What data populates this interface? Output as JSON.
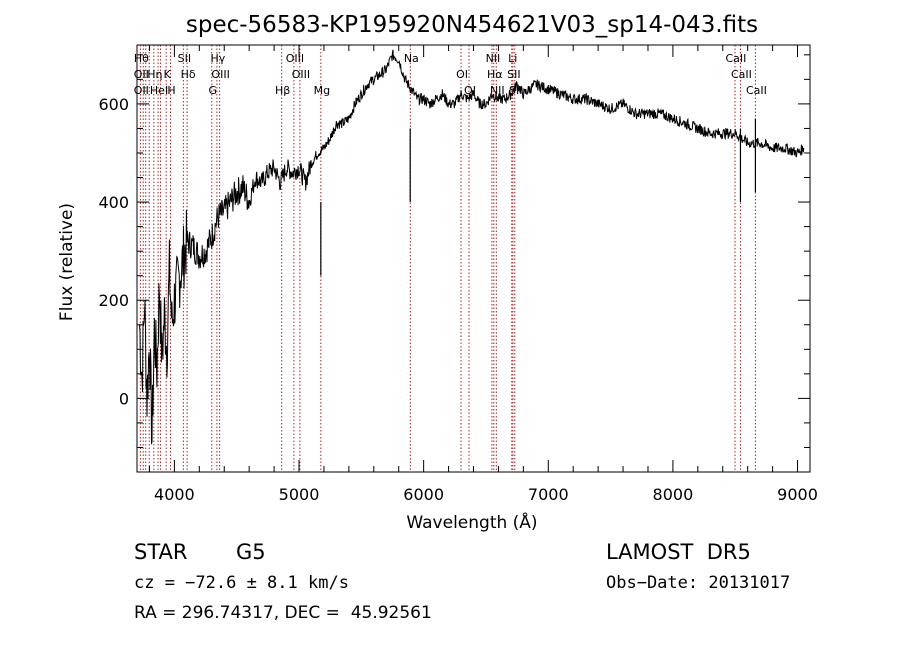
{
  "chart_data": {
    "type": "line",
    "title": "spec-56583-KP195920N454621V03_sp14-043.fits",
    "xlabel": "Wavelength (Å)",
    "ylabel": "Flux (relative)",
    "xlim": [
      3700,
      9100
    ],
    "ylim": [
      -150,
      720
    ],
    "xticks": [
      4000,
      5000,
      6000,
      7000,
      8000,
      9000
    ],
    "yticks": [
      0,
      200,
      400,
      600
    ],
    "grid": false,
    "line_color": "#000000",
    "marker_line_color": "#b22222",
    "series": [
      {
        "values_x": [
          3720,
          3740,
          3760,
          3780,
          3800,
          3820,
          3840,
          3860,
          3880,
          3900,
          3920,
          3940,
          3960,
          3980,
          4000,
          4050,
          4100,
          4150,
          4200,
          4250,
          4300,
          4350,
          4400,
          4450,
          4500,
          4550,
          4600,
          4650,
          4700,
          4750,
          4800,
          4850,
          4900,
          4950,
          5000,
          5050,
          5100,
          5150,
          5200,
          5250,
          5300,
          5350,
          5400,
          5450,
          5500,
          5550,
          5600,
          5650,
          5700,
          5750,
          5800,
          5850,
          5900,
          5950,
          6000,
          6050,
          6100,
          6150,
          6200,
          6250,
          6300,
          6350,
          6400,
          6450,
          6500,
          6550,
          6600,
          6650,
          6700,
          6750,
          6800,
          6900,
          7000,
          7100,
          7200,
          7300,
          7400,
          7500,
          7600,
          7700,
          7800,
          7900,
          8000,
          8100,
          8200,
          8300,
          8400,
          8500,
          8600,
          8700,
          8800,
          8900,
          9000,
          9050
        ],
        "values_y": [
          150,
          40,
          200,
          0,
          120,
          -80,
          140,
          60,
          230,
          80,
          170,
          100,
          260,
          150,
          200,
          260,
          320,
          310,
          290,
          300,
          330,
          370,
          380,
          400,
          420,
          430,
          400,
          450,
          440,
          460,
          470,
          440,
          470,
          460,
          470,
          440,
          480,
          500,
          510,
          530,
          560,
          560,
          570,
          600,
          620,
          640,
          650,
          660,
          670,
          700,
          690,
          650,
          630,
          610,
          610,
          600,
          610,
          620,
          600,
          600,
          620,
          610,
          620,
          600,
          600,
          620,
          610,
          610,
          620,
          640,
          620,
          640,
          630,
          620,
          610,
          610,
          600,
          590,
          600,
          580,
          580,
          580,
          570,
          560,
          550,
          540,
          540,
          540,
          520,
          520,
          510,
          510,
          500,
          510
        ]
      }
    ],
    "absorption_dips": [
      {
        "x": 5175,
        "y": 250
      },
      {
        "x": 5892,
        "y": 400
      },
      {
        "x": 8542,
        "y": 400
      },
      {
        "x": 8662,
        "y": 420
      }
    ],
    "line_markers": [
      {
        "x": 3727,
        "labels": [
          "Hθ",
          "OII",
          "OII"
        ]
      },
      {
        "x": 3750,
        "labels": []
      },
      {
        "x": 3770,
        "labels": []
      },
      {
        "x": 3798,
        "labels": []
      },
      {
        "x": 3835,
        "labels": [
          "Hη"
        ]
      },
      {
        "x": 3869,
        "labels": [
          "HeI"
        ]
      },
      {
        "x": 3889,
        "labels": []
      },
      {
        "x": 3934,
        "labels": [
          "K"
        ]
      },
      {
        "x": 3969,
        "labels": [
          "H"
        ]
      },
      {
        "x": 4072,
        "labels": [
          "SII"
        ]
      },
      {
        "x": 4102,
        "labels": [
          "Hδ"
        ]
      },
      {
        "x": 4300,
        "labels": [
          "G"
        ]
      },
      {
        "x": 4341,
        "labels": [
          "Hγ"
        ]
      },
      {
        "x": 4363,
        "labels": [
          "OIII"
        ]
      },
      {
        "x": 4861,
        "labels": [
          "Hβ"
        ]
      },
      {
        "x": 4959,
        "labels": [
          "OIII"
        ]
      },
      {
        "x": 5007,
        "labels": [
          "OIII"
        ]
      },
      {
        "x": 5175,
        "labels": [
          "Mg"
        ]
      },
      {
        "x": 5893,
        "labels": [
          "Na"
        ]
      },
      {
        "x": 6300,
        "labels": [
          "OI"
        ]
      },
      {
        "x": 6364,
        "labels": [
          "OI"
        ]
      },
      {
        "x": 6548,
        "labels": [
          "NII"
        ]
      },
      {
        "x": 6563,
        "labels": [
          "Hα"
        ]
      },
      {
        "x": 6583,
        "labels": [
          "NII"
        ]
      },
      {
        "x": 6707,
        "labels": [
          "Li"
        ]
      },
      {
        "x": 6716,
        "labels": [
          "SII"
        ]
      },
      {
        "x": 6731,
        "labels": [
          "SII"
        ]
      },
      {
        "x": 8498,
        "labels": [
          "CaII"
        ]
      },
      {
        "x": 8542,
        "labels": [
          "CaII"
        ]
      },
      {
        "x": 8662,
        "labels": [
          "CaII"
        ]
      }
    ]
  },
  "info": {
    "class_label": "STAR",
    "subclass_label": "G5",
    "survey": "LAMOST  DR5",
    "cz": "cz = −72.6 ± 8.1 km/s",
    "obs_date": "Obs−Date: 20131017",
    "coords": "RA = 296.74317, DEC =  45.92561"
  }
}
